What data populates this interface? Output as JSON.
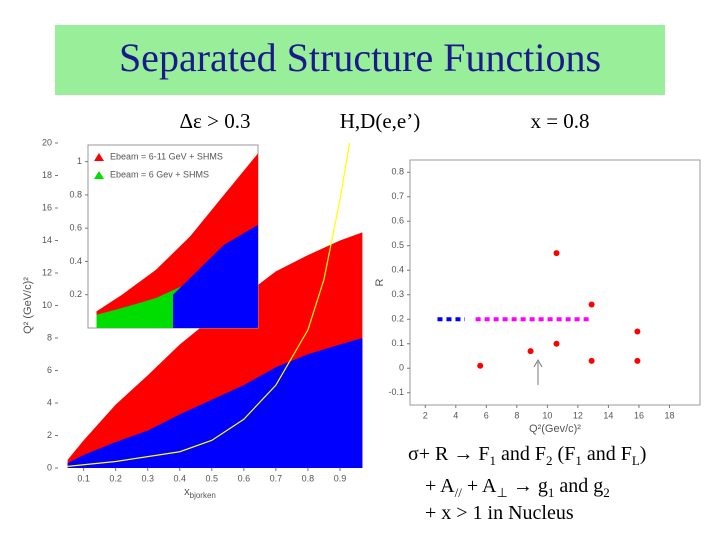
{
  "slide": {
    "title": "Separated Structure Functions",
    "headers": [
      "Δε > 0.3",
      "H,D(e,e’)",
      "x = 0.8"
    ],
    "notes": [
      [
        {
          "text": "σ+ R → F"
        },
        {
          "text": "1",
          "sub": true
        },
        {
          "text": " and F"
        },
        {
          "text": "2",
          "sub": true
        },
        {
          "text": " (F"
        },
        {
          "text": "1",
          "sub": true
        },
        {
          "text": " and F"
        },
        {
          "text": "L",
          "sub": true
        },
        {
          "text": ")"
        }
      ],
      [
        {
          "text": "+ A"
        },
        {
          "text": "//",
          "sub": true
        },
        {
          "text": " + A"
        },
        {
          "text": "⊥",
          "sub": true
        },
        {
          "text": " → g"
        },
        {
          "text": "1",
          "sub": true
        },
        {
          "text": " and g"
        },
        {
          "text": "2",
          "sub": true
        }
      ],
      [
        {
          "text": "+ x > 1 in Nucleus"
        }
      ]
    ]
  },
  "chart_data": [
    {
      "type": "area",
      "ylabel": "Q² (GeV/c)²",
      "xlabel": "x",
      "xlabel_sub": "bjorken",
      "xlim": [
        0.02,
        1.0
      ],
      "ylim": [
        0,
        20
      ],
      "xticks": [
        0.1,
        0.2,
        0.3,
        0.4,
        0.5,
        0.6,
        0.7,
        0.8,
        0.9
      ],
      "yticks": [
        0,
        2,
        4,
        6,
        8,
        10,
        12,
        14,
        16,
        18,
        20
      ],
      "series": [
        {
          "color": "#ff0000",
          "x": [
            0.05,
            0.1,
            0.2,
            0.3,
            0.4,
            0.5,
            0.6,
            0.7,
            0.8,
            0.9,
            0.97
          ],
          "values": [
            0.5,
            1.7,
            3.9,
            5.7,
            7.6,
            9.2,
            10.6,
            12.1,
            13.1,
            14.0,
            14.5
          ]
        },
        {
          "color": "#0000ff",
          "x": [
            0.05,
            0.1,
            0.2,
            0.3,
            0.4,
            0.5,
            0.6,
            0.7,
            0.8,
            0.9,
            0.97
          ],
          "values": [
            0.3,
            0.8,
            1.6,
            2.3,
            3.3,
            4.2,
            5.1,
            6.2,
            7.0,
            7.6,
            8.0
          ]
        },
        {
          "type": "line",
          "color": "#ffff00",
          "x": [
            0.05,
            0.2,
            0.4,
            0.5,
            0.6,
            0.7,
            0.8,
            0.85,
            0.9,
            0.93
          ],
          "values": [
            0.1,
            0.4,
            1.0,
            1.7,
            3.0,
            5.1,
            8.5,
            11.6,
            16.5,
            20
          ]
        }
      ]
    },
    {
      "type": "area",
      "xlim": [
        0,
        1
      ],
      "ylim": [
        0,
        1.1
      ],
      "yticks": [
        0.2,
        0.4,
        0.6,
        0.8,
        1
      ],
      "legend": "upper left",
      "series": [
        {
          "name": "Ebeam = 6-11 GeV + SHMS",
          "color": "#ff0000",
          "x": [
            0.05,
            0.2,
            0.4,
            0.6,
            0.8,
            1.0
          ],
          "values": [
            0.1,
            0.2,
            0.35,
            0.55,
            0.8,
            1.05
          ]
        },
        {
          "name": "Ebeam = 6 Gev + SHMS",
          "color": "#00dd00",
          "x": [
            0.05,
            0.2,
            0.4,
            0.55
          ],
          "values": [
            0.08,
            0.12,
            0.18,
            0.25
          ]
        },
        {
          "color": "#0000ff",
          "x": [
            0.5,
            0.6,
            0.8,
            1.0
          ],
          "values": [
            0.2,
            0.3,
            0.5,
            0.62
          ]
        }
      ]
    },
    {
      "type": "scatter",
      "ylabel": "R",
      "xlabel": "Q²(Gev/c)²",
      "xlim": [
        1,
        20
      ],
      "ylim": [
        -0.15,
        0.85
      ],
      "xticks": [
        2,
        4,
        6,
        8,
        10,
        12,
        14,
        16,
        18
      ],
      "yticks": [
        -0.1,
        0,
        0.1,
        0.2,
        0.3,
        0.4,
        0.5,
        0.6,
        0.7,
        0.8
      ],
      "series": [
        {
          "type": "line",
          "dashed": true,
          "color": "#0000ff",
          "x": [
            2.8,
            4.6
          ],
          "values": [
            0.2,
            0.2
          ]
        },
        {
          "type": "line",
          "dashed": true,
          "color": "#ff00ff",
          "x": [
            5.3,
            12.8
          ],
          "values": [
            0.2,
            0.2
          ]
        },
        {
          "color": "#ff0000",
          "x": [
            5.6,
            8.9,
            10.6,
            10.6,
            12.9,
            12.9,
            15.9,
            15.9
          ],
          "values": [
            0.01,
            0.07,
            0.47,
            0.1,
            0.26,
            0.03,
            0.15,
            0.03
          ]
        }
      ]
    }
  ]
}
